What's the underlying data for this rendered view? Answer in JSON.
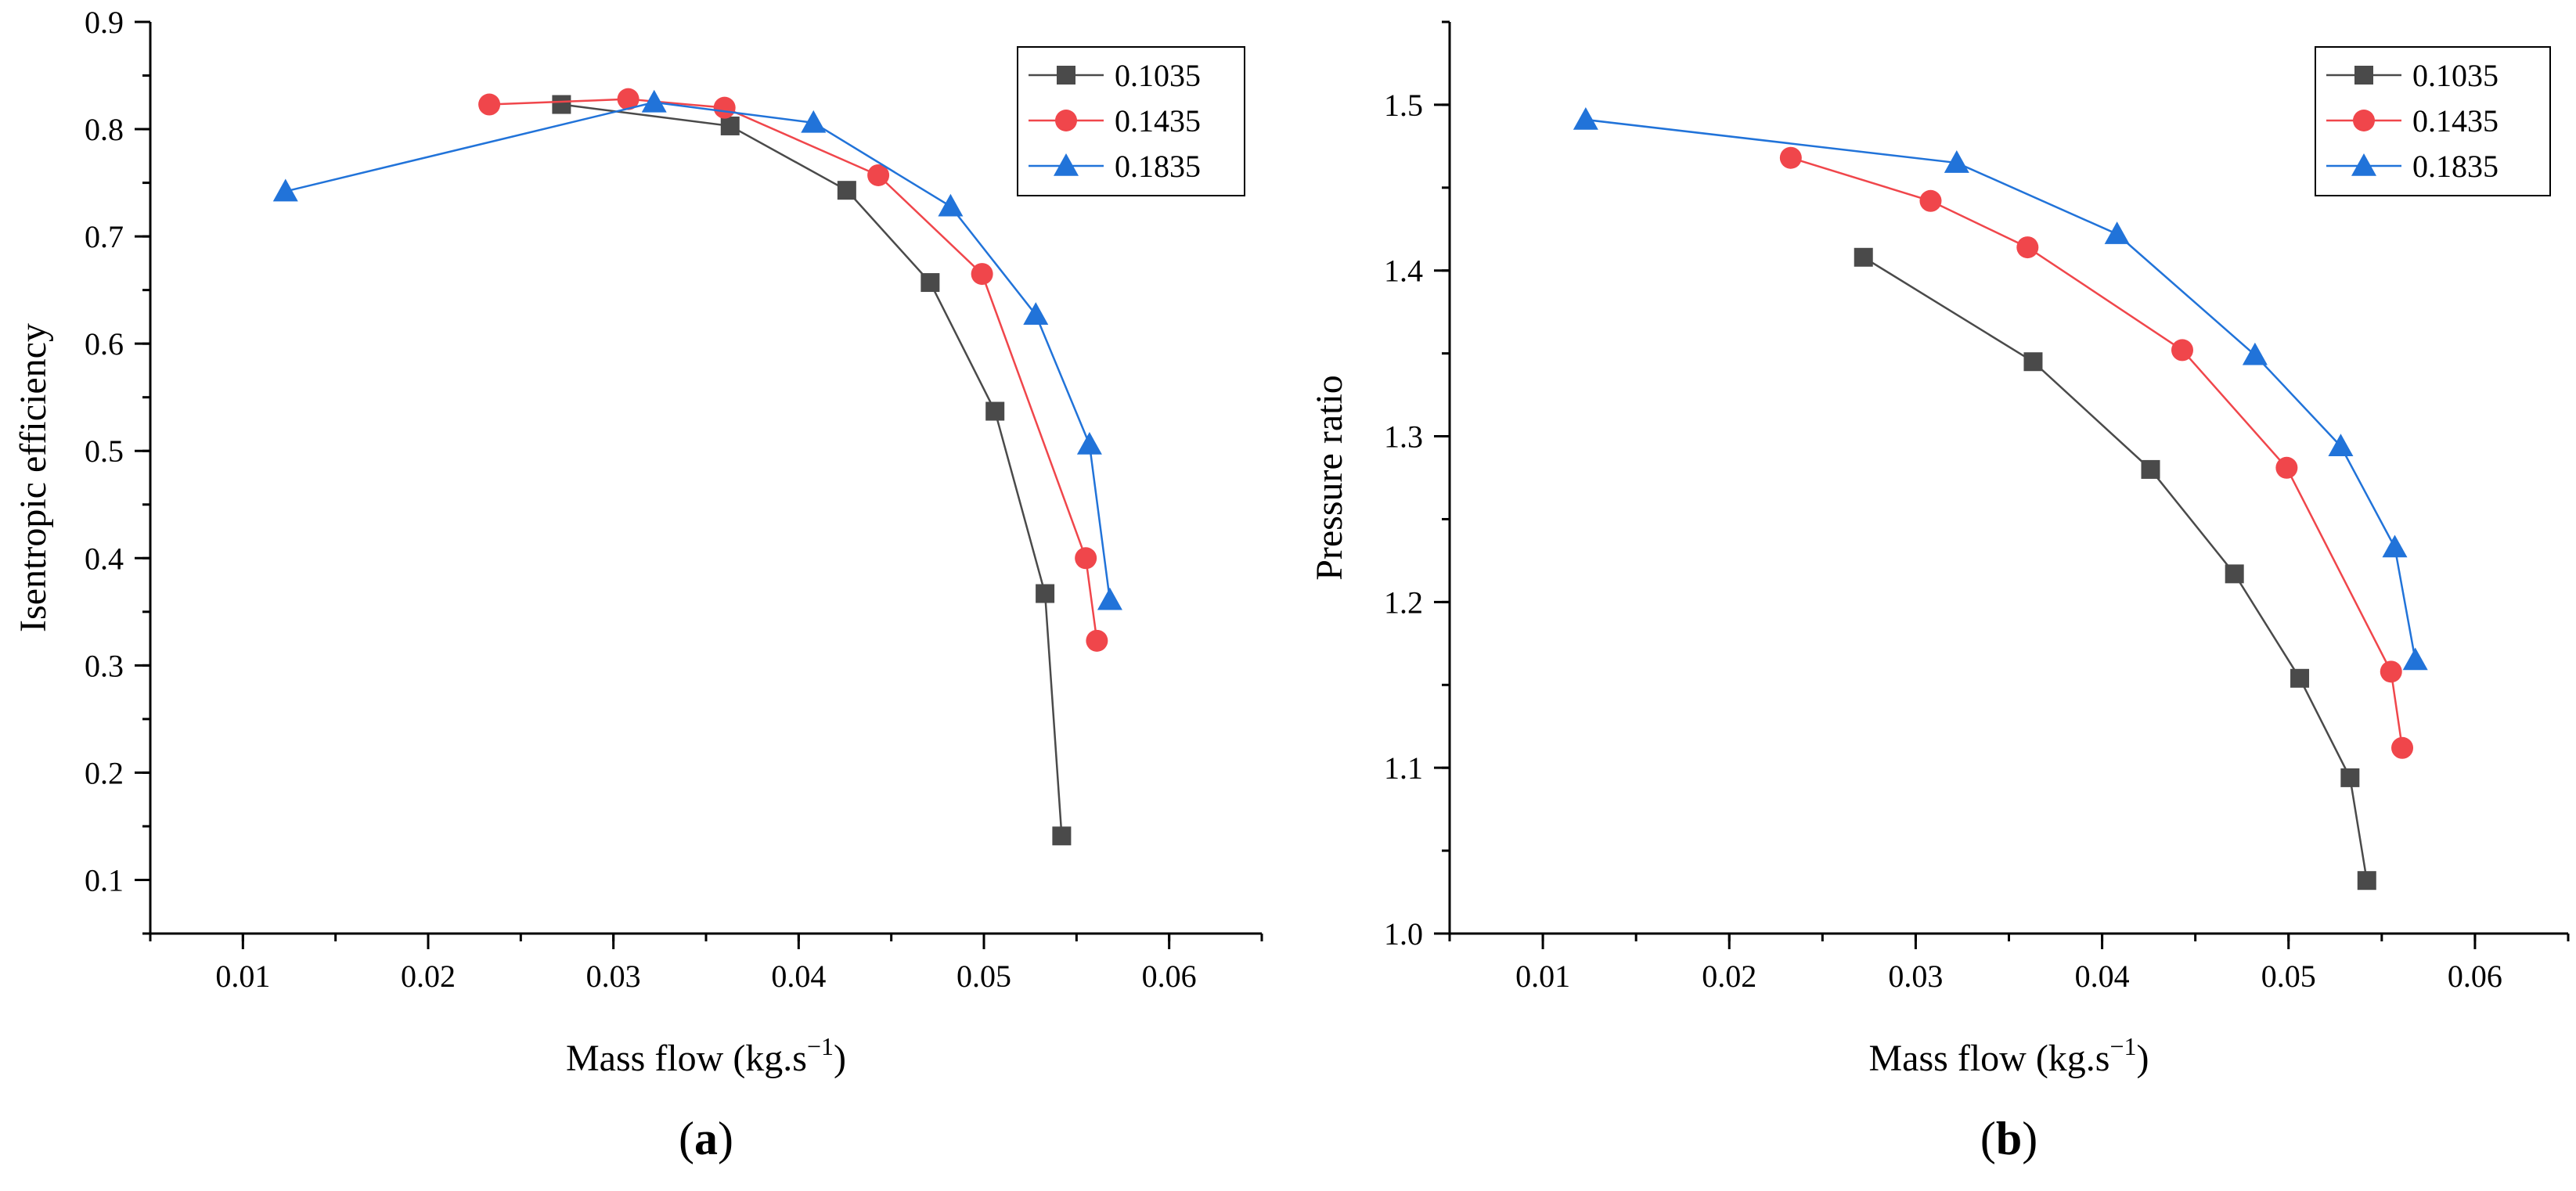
{
  "chart_data": [
    {
      "type": "line",
      "panel_label": "a",
      "xlabel": "Mass flow (kg.s",
      "xlabel_sup": "−1",
      "ylabel": "Isentropic efficiency",
      "xlim": [
        0.005,
        0.065
      ],
      "ylim": [
        0.05,
        0.9
      ],
      "xticks": [
        0.01,
        0.02,
        0.03,
        0.04,
        0.05,
        0.06
      ],
      "xtick_labels": [
        "0.01",
        "0.02",
        "0.03",
        "0.04",
        "0.05",
        "0.06"
      ],
      "yticks": [
        0.1,
        0.2,
        0.3,
        0.4,
        0.5,
        0.6,
        0.7,
        0.8,
        0.9
      ],
      "ytick_labels": [
        "0.1",
        "0.2",
        "0.3",
        "0.4",
        "0.5",
        "0.6",
        "0.7",
        "0.8",
        "0.9"
      ],
      "legend_position": "top-right",
      "grid": false,
      "series": [
        {
          "name": "0.1035",
          "color": "#4a4a4a",
          "marker": "square",
          "x": [
            0.0272,
            0.0363,
            0.0426,
            0.0471,
            0.0506,
            0.0533,
            0.0542
          ],
          "y": [
            0.823,
            0.803,
            0.743,
            0.657,
            0.537,
            0.367,
            0.141
          ]
        },
        {
          "name": "0.1435",
          "color": "#f0464b",
          "marker": "circle",
          "x": [
            0.0233,
            0.0308,
            0.036,
            0.0443,
            0.0499,
            0.0555,
            0.0561
          ],
          "y": [
            0.823,
            0.828,
            0.82,
            0.757,
            0.665,
            0.4,
            0.323
          ]
        },
        {
          "name": "0.1835",
          "color": "#2173d9",
          "marker": "triangle",
          "x": [
            0.0123,
            0.0322,
            0.0408,
            0.0482,
            0.0528,
            0.0557,
            0.0568
          ],
          "y": [
            0.742,
            0.825,
            0.806,
            0.728,
            0.627,
            0.506,
            0.361
          ]
        }
      ]
    },
    {
      "type": "line",
      "panel_label": "b",
      "xlabel": "Mass flow (kg.s",
      "xlabel_sup": "−1",
      "ylabel": "Pressure ratio",
      "xlim": [
        0.005,
        0.065
      ],
      "ylim": [
        1.0,
        1.55
      ],
      "xticks": [
        0.01,
        0.02,
        0.03,
        0.04,
        0.05,
        0.06
      ],
      "xtick_labels": [
        "0.01",
        "0.02",
        "0.03",
        "0.04",
        "0.05",
        "0.06"
      ],
      "yticks": [
        1.0,
        1.1,
        1.2,
        1.3,
        1.4,
        1.5
      ],
      "ytick_labels": [
        "1.0",
        "1.1",
        "1.2",
        "1.3",
        "1.4",
        "1.5"
      ],
      "legend_position": "top-right",
      "grid": false,
      "series": [
        {
          "name": "0.1035",
          "color": "#4a4a4a",
          "marker": "square",
          "x": [
            0.0272,
            0.0363,
            0.0426,
            0.0471,
            0.0506,
            0.0533,
            0.0542
          ],
          "y": [
            1.408,
            1.345,
            1.28,
            1.217,
            1.154,
            1.094,
            1.032
          ]
        },
        {
          "name": "0.1435",
          "color": "#f0464b",
          "marker": "circle",
          "x": [
            0.0233,
            0.0308,
            0.036,
            0.0443,
            0.0499,
            0.0555,
            0.0561
          ],
          "y": [
            1.468,
            1.442,
            1.414,
            1.352,
            1.281,
            1.158,
            1.112
          ]
        },
        {
          "name": "0.1835",
          "color": "#2173d9",
          "marker": "triangle",
          "x": [
            0.0123,
            0.0322,
            0.0408,
            0.0482,
            0.0528,
            0.0557,
            0.0568
          ],
          "y": [
            1.491,
            1.465,
            1.422,
            1.349,
            1.294,
            1.233,
            1.165
          ]
        }
      ]
    }
  ]
}
